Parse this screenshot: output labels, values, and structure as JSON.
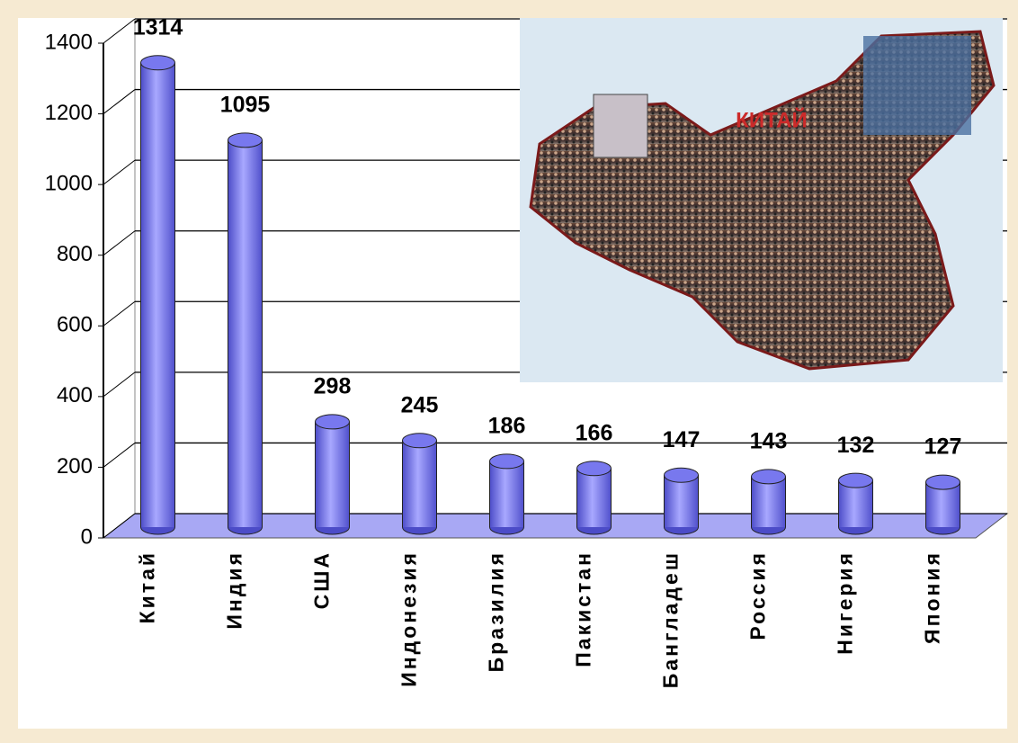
{
  "chart_data": {
    "type": "bar",
    "categories": [
      "Китай",
      "Индия",
      "США",
      "Индонезия",
      "Бразилия",
      "Пакистан",
      "Бангладеш",
      "Россия",
      "Нигерия",
      "Япония"
    ],
    "values": [
      1314,
      1095,
      298,
      245,
      186,
      166,
      147,
      143,
      132,
      127
    ],
    "color": "#7878ee",
    "ylim": [
      0,
      1400
    ],
    "yticks": [
      0,
      200,
      400,
      600,
      800,
      1000,
      1200,
      1400
    ],
    "grid": true,
    "annotation": "КИТАЙ"
  }
}
